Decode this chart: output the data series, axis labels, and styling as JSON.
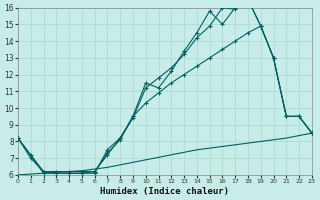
{
  "xlabel": "Humidex (Indice chaleur)",
  "xlim": [
    0,
    23
  ],
  "ylim": [
    6,
    16
  ],
  "yticks": [
    6,
    7,
    8,
    9,
    10,
    11,
    12,
    13,
    14,
    15,
    16
  ],
  "xticks": [
    0,
    1,
    2,
    3,
    4,
    5,
    6,
    7,
    8,
    9,
    10,
    11,
    12,
    13,
    14,
    15,
    16,
    17,
    18,
    19,
    20,
    21,
    22,
    23
  ],
  "bg_color": "#c8ede8",
  "grid_color": "#a8d8d2",
  "line_color": "#006060",
  "line1_x": [
    0,
    1,
    2,
    3,
    4,
    5,
    6,
    7,
    8,
    9,
    10,
    11,
    12,
    13,
    14,
    15,
    16,
    17,
    18,
    19,
    20,
    21,
    22,
    23
  ],
  "line1_y": [
    6.0,
    6.05,
    6.1,
    6.15,
    6.2,
    6.25,
    6.35,
    6.45,
    6.6,
    6.75,
    6.9,
    7.05,
    7.2,
    7.35,
    7.5,
    7.6,
    7.7,
    7.8,
    7.9,
    8.0,
    8.1,
    8.2,
    8.35,
    8.5
  ],
  "line2_x": [
    0,
    1,
    2,
    3,
    4,
    5,
    6,
    7,
    8,
    9,
    10,
    11,
    12,
    13,
    14,
    15,
    16,
    17,
    18,
    19,
    20,
    21,
    22,
    23
  ],
  "line2_y": [
    8.2,
    7.2,
    6.2,
    6.2,
    6.2,
    6.2,
    6.2,
    7.3,
    8.1,
    9.5,
    10.3,
    10.9,
    11.5,
    12.0,
    12.5,
    13.0,
    13.5,
    14.0,
    14.5,
    14.9,
    13.0,
    9.5,
    9.5,
    8.5
  ],
  "line3_x": [
    0,
    1,
    2,
    3,
    4,
    5,
    6,
    7,
    8,
    9,
    10,
    11,
    12,
    13,
    14,
    15,
    16,
    17,
    18,
    19,
    20,
    21,
    22,
    23
  ],
  "line3_y": [
    8.2,
    7.0,
    6.2,
    6.1,
    6.1,
    6.1,
    6.1,
    7.5,
    8.2,
    9.5,
    11.5,
    11.2,
    12.2,
    13.4,
    14.5,
    15.8,
    15.0,
    16.0,
    16.5,
    14.9,
    13.0,
    9.5,
    9.5,
    8.5
  ],
  "line4_x": [
    0,
    2,
    3,
    4,
    5,
    6,
    7,
    8,
    9,
    10,
    11,
    12,
    13,
    14,
    15,
    16,
    17,
    18,
    19,
    20,
    21,
    22,
    23
  ],
  "line4_y": [
    8.2,
    6.1,
    6.1,
    6.1,
    6.1,
    6.2,
    7.2,
    8.2,
    9.4,
    11.2,
    11.8,
    12.4,
    13.2,
    14.2,
    14.9,
    16.0,
    15.9,
    16.5,
    14.9,
    13.0,
    9.5,
    9.5,
    8.5
  ]
}
